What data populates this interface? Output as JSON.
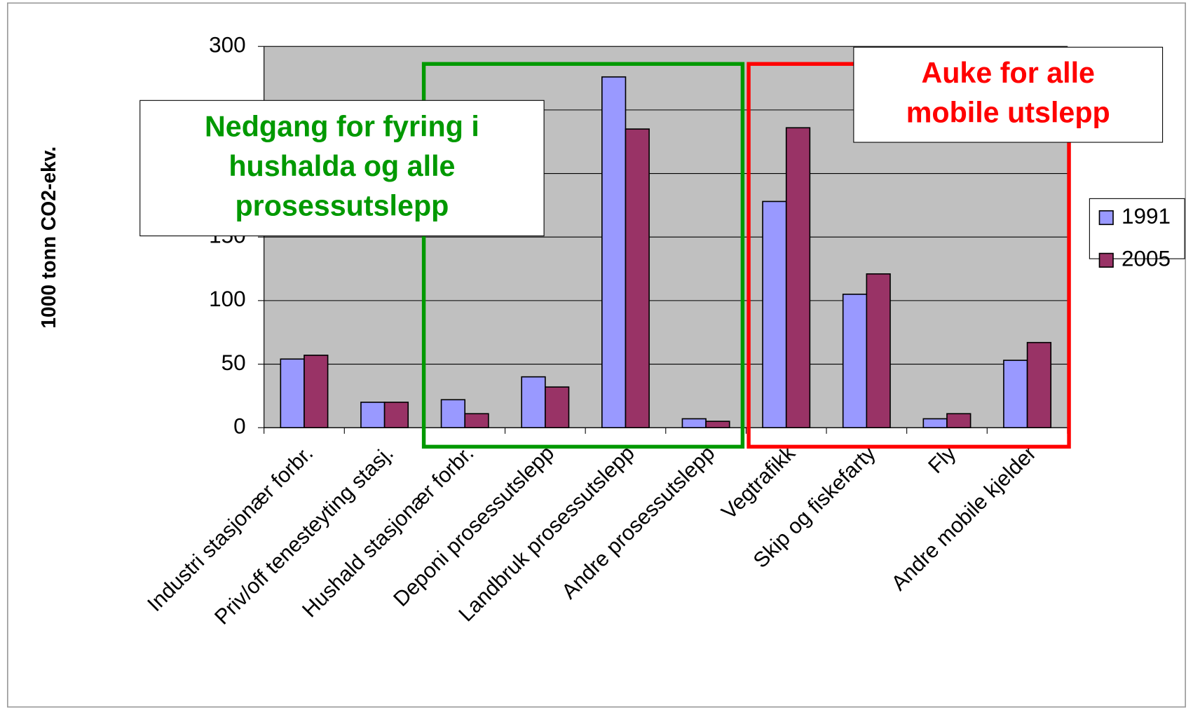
{
  "chart_data": {
    "type": "bar",
    "ylabel": "1000 tonn CO2-ekv.",
    "categories": [
      "Industri stasjonær forbr.",
      "Priv/off tenesteyting stasj.",
      "Hushald stasjonær forbr.",
      "Deponi prosessutslepp",
      "Landbruk prosessutslepp",
      "Andre prosessutslepp",
      "Vegtrafikk",
      "Skip og fiskefarty",
      "Fly",
      "Andre mobile kjelder"
    ],
    "series": [
      {
        "name": "1991",
        "color": "#9999ff",
        "values": [
          54,
          20,
          22,
          40,
          276,
          7,
          178,
          105,
          7,
          53
        ]
      },
      {
        "name": "2005",
        "color": "#993366",
        "values": [
          57,
          20,
          11,
          32,
          235,
          5,
          236,
          121,
          11,
          67
        ]
      }
    ],
    "ylim": [
      0,
      300
    ],
    "yticks": [
      0,
      50,
      100,
      150,
      200,
      250,
      300
    ],
    "grid": true,
    "legend": "right",
    "annotations": [
      {
        "lines": [
          "Nedgang for fyring i",
          "hushalda og alle",
          "prosessutslepp"
        ],
        "color": "#009900"
      },
      {
        "lines": [
          "Auke for alle",
          "mobile utslepp"
        ],
        "color": "#ff0000"
      }
    ]
  }
}
